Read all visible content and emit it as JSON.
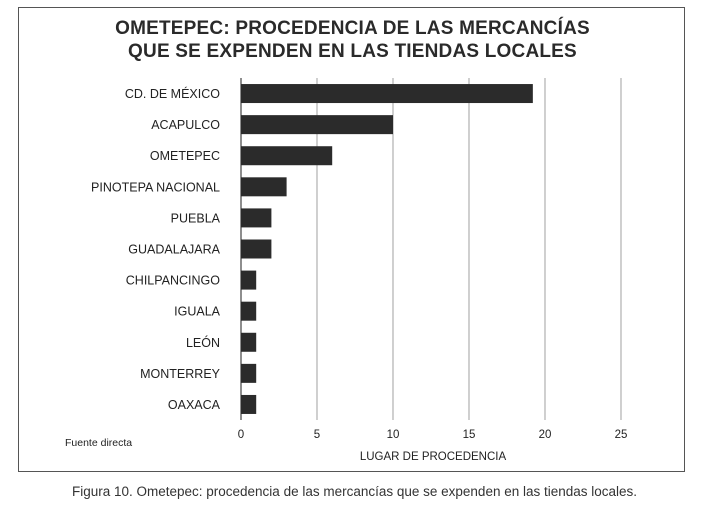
{
  "chart_data": {
    "type": "bar",
    "orientation": "horizontal",
    "title_lines": [
      "OMETEPEC: PROCEDENCIA DE LAS MERCANCÍAS",
      "QUE SE EXPENDEN EN LAS TIENDAS LOCALES"
    ],
    "categories": [
      "CD. DE MÉXICO",
      "ACAPULCO",
      "OMETEPEC",
      "PINOTEPA NACIONAL",
      "PUEBLA",
      "GUADALAJARA",
      "CHILPANCINGO",
      "IGUALA",
      "LEÓN",
      "MONTERREY",
      "OAXACA"
    ],
    "values": [
      19.2,
      10,
      6,
      3,
      2,
      2,
      1,
      1,
      1,
      1,
      1
    ],
    "xlabel": "LUGAR DE PROCEDENCIA",
    "xlim": [
      0,
      25
    ],
    "xticks": [
      "0",
      "5",
      "10",
      "15",
      "20",
      "25"
    ],
    "grid": "vertical",
    "bar_color": "#2b2b2b"
  },
  "source_note": "Fuente directa",
  "caption": "Figura 10. Ometepec: procedencia de las mercancías que se expenden en las tiendas locales."
}
